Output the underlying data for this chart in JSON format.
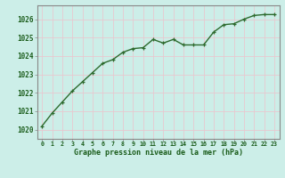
{
  "x": [
    0,
    1,
    2,
    3,
    4,
    5,
    6,
    7,
    8,
    9,
    10,
    11,
    12,
    13,
    14,
    15,
    16,
    17,
    18,
    19,
    20,
    21,
    22,
    23
  ],
  "y": [
    1020.2,
    1020.9,
    1021.5,
    1022.1,
    1022.6,
    1023.1,
    1023.6,
    1023.8,
    1024.2,
    1024.4,
    1024.45,
    1024.9,
    1024.7,
    1024.9,
    1024.6,
    1024.6,
    1024.6,
    1025.3,
    1025.7,
    1025.75,
    1026.0,
    1026.2,
    1026.25,
    1026.25
  ],
  "line_color": "#2d6a2d",
  "marker": "+",
  "marker_size": 3.5,
  "bg_color": "#cceee8",
  "grid_color": "#e8c8d0",
  "axis_label_color": "#1a5c1a",
  "tick_label_color": "#1a5c1a",
  "xlabel": "Graphe pression niveau de la mer (hPa)",
  "ylim_min": 1019.5,
  "ylim_max": 1026.75,
  "yticks": [
    1020,
    1021,
    1022,
    1023,
    1024,
    1025,
    1026
  ],
  "xticks": [
    0,
    1,
    2,
    3,
    4,
    5,
    6,
    7,
    8,
    9,
    10,
    11,
    12,
    13,
    14,
    15,
    16,
    17,
    18,
    19,
    20,
    21,
    22,
    23
  ],
  "linewidth": 1.0,
  "border_color": "#888888",
  "spine_color": "#888888"
}
